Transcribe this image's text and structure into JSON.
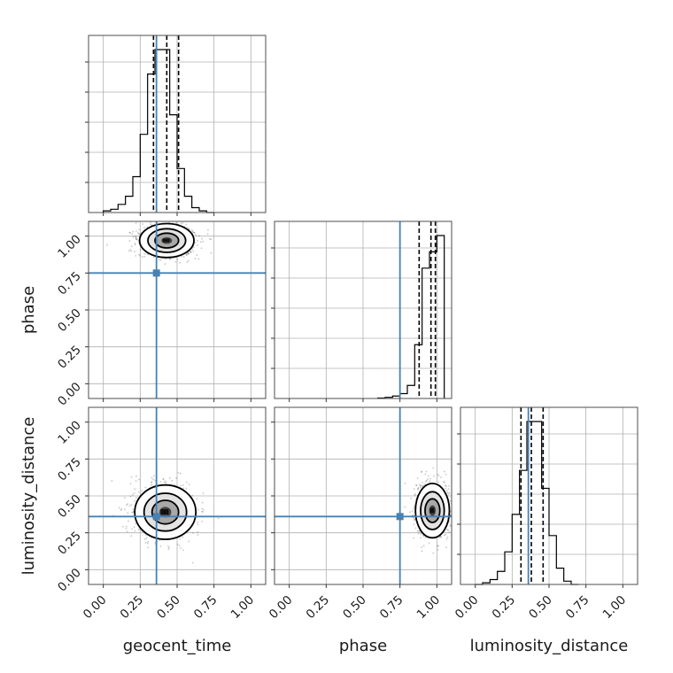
{
  "chart_data": {
    "type": "corner",
    "parameters": [
      "geocent_time",
      "phase",
      "luminosity_distance"
    ],
    "axis_range": [
      -0.1,
      1.1
    ],
    "tick_labels": [
      "0.00",
      "0.25",
      "0.50",
      "0.75",
      "1.00"
    ],
    "truths": {
      "geocent_time": 0.36,
      "phase": 0.75,
      "luminosity_distance": 0.36
    },
    "quantiles": {
      "geocent_time": [
        0.34,
        0.43,
        0.51
      ],
      "phase": [
        0.88,
        0.96,
        0.99
      ],
      "luminosity_distance": [
        0.31,
        0.38,
        0.46
      ]
    },
    "histograms": {
      "geocent_time": {
        "bin_edges": [
          0.0,
          0.05,
          0.1,
          0.15,
          0.2,
          0.25,
          0.3,
          0.35,
          0.4,
          0.45,
          0.5,
          0.55,
          0.6,
          0.65,
          0.7,
          0.75
        ],
        "counts": [
          0.01,
          0.02,
          0.05,
          0.1,
          0.22,
          0.48,
          0.85,
          1.0,
          1.0,
          0.6,
          0.27,
          0.1,
          0.03,
          0.01,
          0.0
        ]
      },
      "phase": {
        "bin_edges": [
          0.6,
          0.65,
          0.7,
          0.75,
          0.8,
          0.85,
          0.9,
          0.95,
          1.0,
          1.05
        ],
        "counts": [
          0.003,
          0.007,
          0.015,
          0.03,
          0.08,
          0.33,
          0.8,
          0.9,
          1.0
        ]
      },
      "luminosity_distance": {
        "bin_edges": [
          0.0,
          0.05,
          0.1,
          0.15,
          0.2,
          0.25,
          0.3,
          0.35,
          0.4,
          0.45,
          0.5,
          0.55,
          0.6,
          0.65,
          0.7
        ],
        "counts": [
          0.0,
          0.01,
          0.03,
          0.08,
          0.2,
          0.43,
          0.7,
          1.0,
          1.0,
          0.59,
          0.3,
          0.1,
          0.02,
          0.0
        ]
      }
    },
    "joint": [
      {
        "x": "geocent_time",
        "y": "phase",
        "mean": [
          0.43,
          0.97
        ],
        "std": [
          0.08,
          0.05
        ]
      },
      {
        "x": "geocent_time",
        "y": "luminosity_distance",
        "mean": [
          0.42,
          0.39
        ],
        "std": [
          0.09,
          0.08
        ]
      },
      {
        "x": "phase",
        "y": "luminosity_distance",
        "mean": [
          0.97,
          0.4
        ],
        "std": [
          0.05,
          0.08
        ]
      }
    ],
    "colors": {
      "truth": "#4682b4",
      "histogram": "#000000",
      "grid": "#b0b0b0",
      "frame": "#4d4d4d"
    },
    "grid": true
  }
}
